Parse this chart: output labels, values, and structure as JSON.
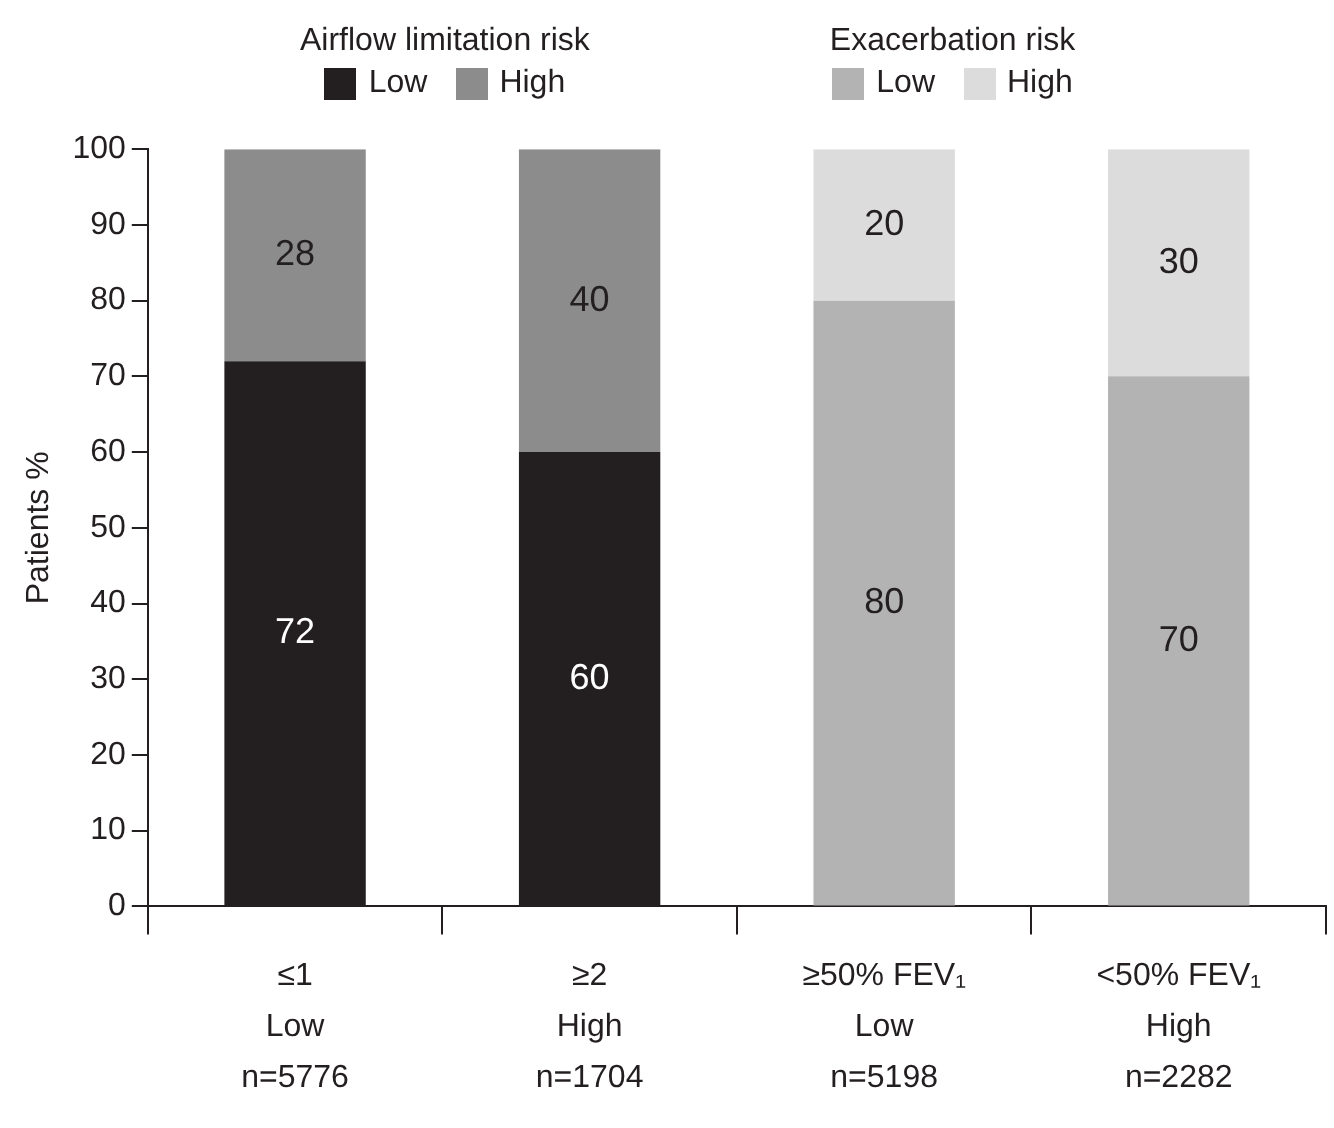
{
  "chart_data": {
    "type": "bar",
    "stacked": true,
    "ylabel": "Patients %",
    "categories": [
      "≤1\nLow\nn=5776",
      "≥2\nHigh\nn=1704",
      "≥50% FEV₁\nLow\nn=5198",
      "<50% FEV₁\nHigh\nn=2282"
    ],
    "series": [
      {
        "name": "Low",
        "color": "#231f20",
        "values": [
          72,
          60,
          null,
          null
        ]
      },
      {
        "name": "High",
        "color": "#8c8c8c",
        "values": [
          28,
          40,
          null,
          null
        ]
      },
      {
        "name": "Low",
        "color": "#b3b3b3",
        "values": [
          null,
          null,
          80,
          70
        ]
      },
      {
        "name": "High",
        "color": "#dcdcdd",
        "values": [
          null,
          null,
          20,
          30
        ]
      }
    ],
    "annotations": [
      "Airflow limitation risk",
      "Exacerbation risk"
    ],
    "ylim": [
      0,
      100
    ],
    "yticks": [
      0,
      10,
      20,
      30,
      40,
      50,
      60,
      70,
      80,
      90,
      100
    ],
    "grid": false,
    "legend": "top",
    "data_labels": true
  }
}
